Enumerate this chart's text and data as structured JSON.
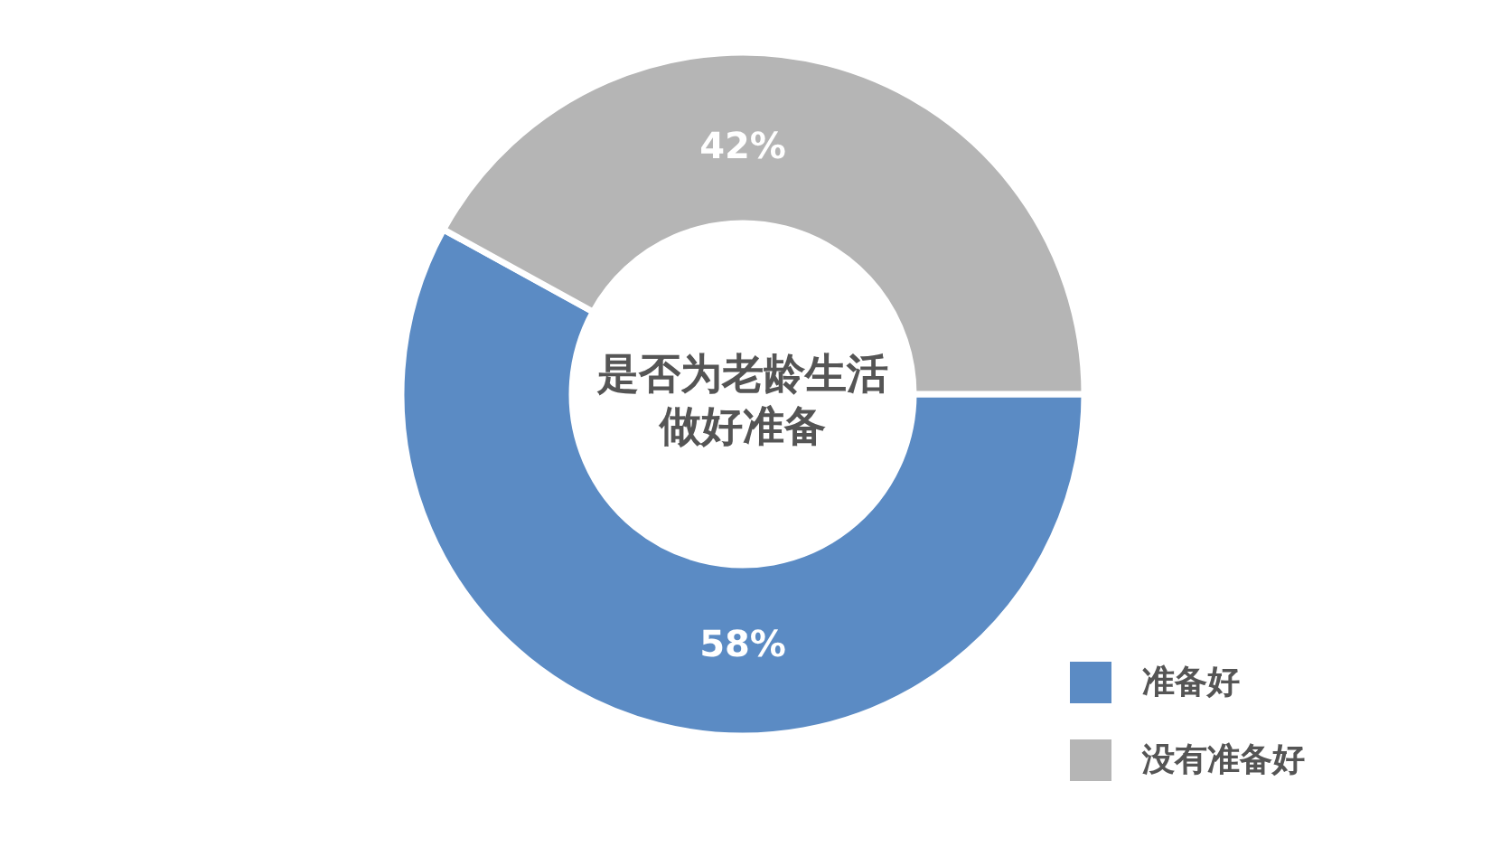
{
  "chart_data": {
    "type": "donut",
    "title": "是否为老龄生活做好准备",
    "categories": [
      "准备好",
      "没有准备好"
    ],
    "values": [
      58,
      42
    ],
    "colors": [
      "#5b8bc4",
      "#b5b5b5"
    ],
    "value_labels": [
      "58%",
      "42%"
    ],
    "legend": "bottom right"
  }
}
